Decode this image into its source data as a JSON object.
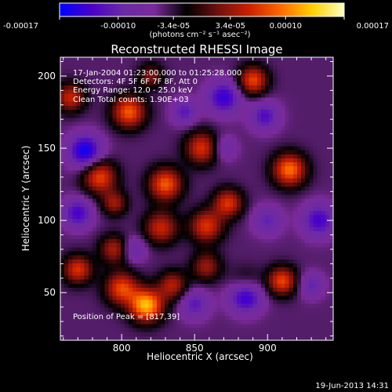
{
  "chart_data": {
    "type": "heatmap",
    "title": "Reconstructed RHESSI Image",
    "xlabel": "Heliocentric X (arcsec)",
    "ylabel": "Heliocentric Y (arcsec)",
    "x_ticks": [
      "800",
      "850",
      "900"
    ],
    "y_ticks": [
      "50",
      "100",
      "150",
      "200"
    ],
    "xlim": [
      758,
      945
    ],
    "ylim": [
      17,
      213
    ],
    "colorbar": {
      "min": -0.00017,
      "max": 0.00017,
      "ticks": [
        "-0.00017",
        "-0.00010",
        "-3.4e-05",
        "3.4e-05",
        "0.00010",
        "0.00017"
      ],
      "tick_values": [
        -0.00017,
        -0.0001,
        -3.4e-05,
        3.4e-05,
        0.0001,
        0.00017
      ],
      "unit_label": "(photons cm⁻² s⁻¹ asec⁻²)",
      "colormap": [
        "#0000ff",
        "#4a00c8",
        "#6b2aa5",
        "#7a2a9a",
        "#000000",
        "#6e1010",
        "#cc2000",
        "#ff6a00",
        "#ffd000",
        "#ffffc0"
      ]
    },
    "annotations": [
      "17-Jan-2004 01:23:00.000 to 01:25:28.000",
      "Detectors: 4F 5F 6F 7F 8F, Att 0",
      "Energy Range: 12.0 - 25.0 keV",
      "Clean    Total counts: 1.90E+03"
    ],
    "peak_label": "Position of Peak = [817,39]",
    "peak": {
      "x": 817,
      "y": 39
    },
    "footer_date": "19-Jun-2013 14:31",
    "sources": [
      {
        "x": 817,
        "y": 41,
        "v": 0.00017,
        "s": 8
      },
      {
        "x": 800,
        "y": 53,
        "v": 0.00012,
        "s": 8
      },
      {
        "x": 835,
        "y": 55,
        "v": 9e-05,
        "s": 7
      },
      {
        "x": 885,
        "y": 55,
        "v": 6e-05,
        "s": 8
      },
      {
        "x": 910,
        "y": 58,
        "v": 0.00012,
        "s": 7
      },
      {
        "x": 770,
        "y": 66,
        "v": 0.00011,
        "s": 7
      },
      {
        "x": 858,
        "y": 68,
        "v": 8e-05,
        "s": 7
      },
      {
        "x": 795,
        "y": 80,
        "v": 9e-05,
        "s": 7
      },
      {
        "x": 827,
        "y": 95,
        "v": 0.0001,
        "s": 8
      },
      {
        "x": 858,
        "y": 96,
        "v": 0.00011,
        "s": 8
      },
      {
        "x": 873,
        "y": 112,
        "v": 0.00011,
        "s": 7
      },
      {
        "x": 830,
        "y": 125,
        "v": 0.00013,
        "s": 8
      },
      {
        "x": 785,
        "y": 130,
        "v": 0.00012,
        "s": 8
      },
      {
        "x": 795,
        "y": 112,
        "v": 8e-05,
        "s": 6
      },
      {
        "x": 915,
        "y": 135,
        "v": 0.00014,
        "s": 8
      },
      {
        "x": 855,
        "y": 150,
        "v": 0.00011,
        "s": 8
      },
      {
        "x": 805,
        "y": 175,
        "v": 0.00013,
        "s": 8
      },
      {
        "x": 765,
        "y": 185,
        "v": 0.0001,
        "s": 7
      },
      {
        "x": 890,
        "y": 197,
        "v": 0.00012,
        "s": 7
      },
      {
        "x": 820,
        "y": 200,
        "v": 7e-05,
        "s": 6
      },
      {
        "x": 885,
        "y": 48,
        "v": -0.00013,
        "s": 8
      },
      {
        "x": 775,
        "y": 148,
        "v": -0.00012,
        "s": 8
      },
      {
        "x": 770,
        "y": 105,
        "v": -9e-05,
        "s": 7
      },
      {
        "x": 808,
        "y": 80,
        "v": -6e-05,
        "s": 6
      },
      {
        "x": 870,
        "y": 185,
        "v": -0.0001,
        "s": 8
      },
      {
        "x": 898,
        "y": 172,
        "v": -8e-05,
        "s": 7
      },
      {
        "x": 935,
        "y": 100,
        "v": -9e-05,
        "s": 8
      },
      {
        "x": 900,
        "y": 100,
        "v": -6e-05,
        "s": 7
      },
      {
        "x": 843,
        "y": 175,
        "v": -7e-05,
        "s": 6
      },
      {
        "x": 850,
        "y": 42,
        "v": -7e-05,
        "s": 7
      },
      {
        "x": 870,
        "y": 150,
        "v": -5e-05,
        "s": 6
      },
      {
        "x": 930,
        "y": 55,
        "v": -6e-05,
        "s": 6
      }
    ]
  }
}
